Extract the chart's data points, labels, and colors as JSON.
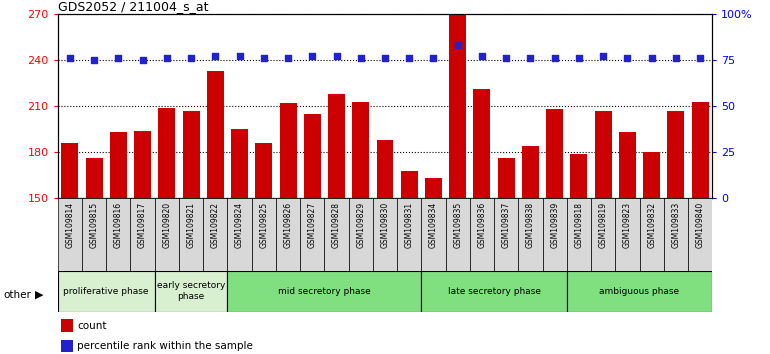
{
  "title": "GDS2052 / 211004_s_at",
  "samples": [
    "GSM109814",
    "GSM109815",
    "GSM109816",
    "GSM109817",
    "GSM109820",
    "GSM109821",
    "GSM109822",
    "GSM109824",
    "GSM109825",
    "GSM109826",
    "GSM109827",
    "GSM109828",
    "GSM109829",
    "GSM109830",
    "GSM109831",
    "GSM109834",
    "GSM109835",
    "GSM109836",
    "GSM109837",
    "GSM109838",
    "GSM109839",
    "GSM109818",
    "GSM109819",
    "GSM109823",
    "GSM109832",
    "GSM109833",
    "GSM109840"
  ],
  "counts": [
    186,
    176,
    193,
    194,
    209,
    207,
    233,
    195,
    186,
    212,
    205,
    218,
    213,
    188,
    168,
    163,
    270,
    221,
    176,
    184,
    208,
    179,
    207,
    193,
    180,
    207,
    213
  ],
  "percentiles": [
    76,
    75,
    76,
    75,
    76,
    76,
    77,
    77,
    76,
    76,
    77,
    77,
    76,
    76,
    76,
    76,
    83,
    77,
    76,
    76,
    76,
    76,
    77,
    76,
    76,
    76,
    76
  ],
  "phases_config": [
    {
      "label": "proliferative phase",
      "start": 0,
      "end": 4,
      "color": "#d8f0d0"
    },
    {
      "label": "early secretory\nphase",
      "start": 4,
      "end": 7,
      "color": "#d8f0d0"
    },
    {
      "label": "mid secretory phase",
      "start": 7,
      "end": 15,
      "color": "#80e080"
    },
    {
      "label": "late secretory phase",
      "start": 15,
      "end": 21,
      "color": "#80e080"
    },
    {
      "label": "ambiguous phase",
      "start": 21,
      "end": 27,
      "color": "#80e080"
    }
  ],
  "ylim_left": [
    150,
    270
  ],
  "ylim_right": [
    0,
    100
  ],
  "yticks_left": [
    150,
    180,
    210,
    240,
    270
  ],
  "yticks_right": [
    0,
    25,
    50,
    75,
    100
  ],
  "bar_color": "#CC0000",
  "dot_color": "#2222CC",
  "title_fontsize": 9
}
